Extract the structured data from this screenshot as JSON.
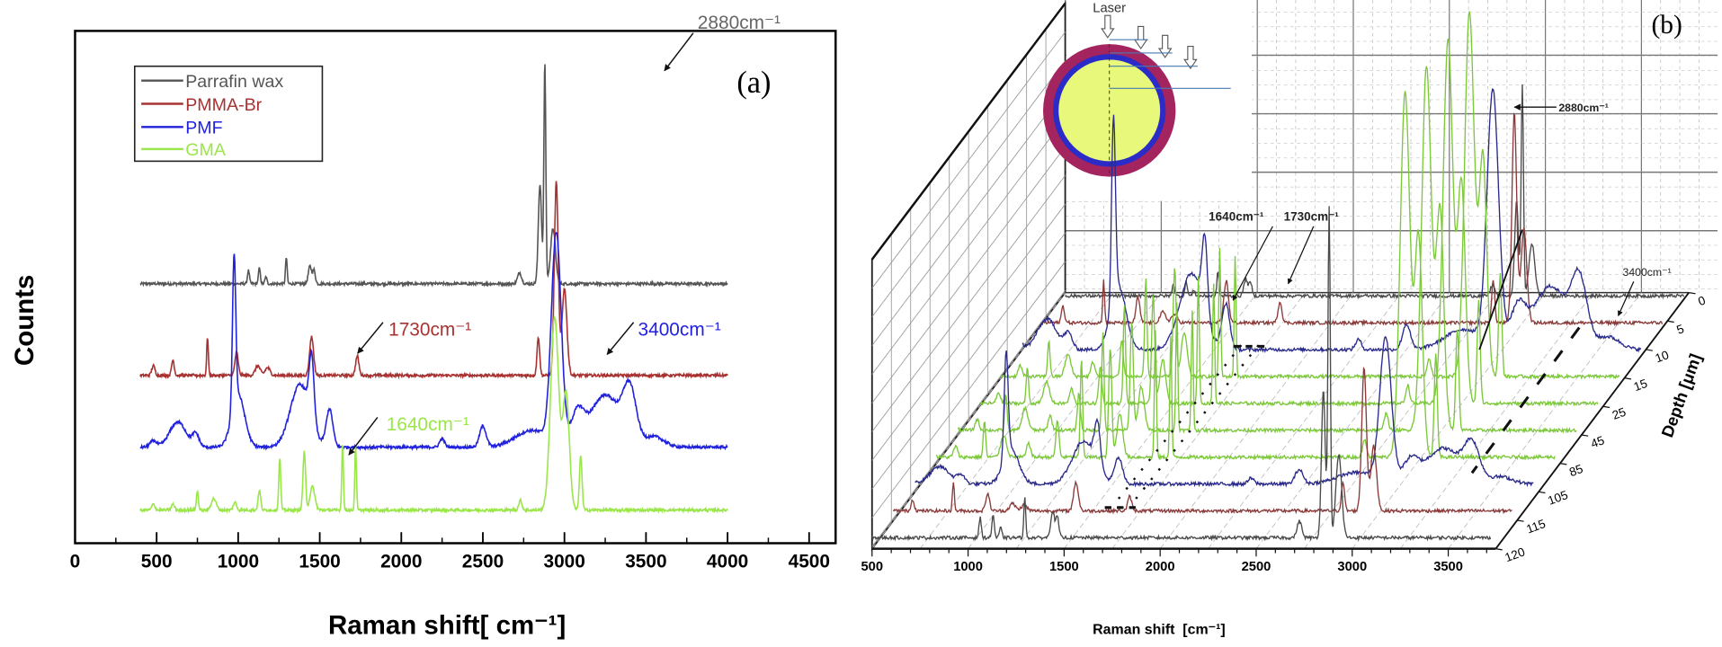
{
  "chart_data": [
    {
      "type": "line",
      "panel_label": "(a)",
      "xlabel": "Raman shift[ cm⁻¹]",
      "ylabel": "Counts",
      "xlim": [
        0,
        4500
      ],
      "x_ticks": [
        "0",
        "500",
        "1000",
        "1500",
        "2000",
        "2500",
        "3000",
        "3500",
        "4000",
        "4500"
      ],
      "grid": false,
      "legend_position": "top-left",
      "series": [
        {
          "name": "Parrafin wax",
          "color": "#555555",
          "range": [
            400,
            4000
          ],
          "peaks": [
            {
              "shift": 1063,
              "height": 0.06,
              "sigma": 6
            },
            {
              "shift": 1130,
              "height": 0.07,
              "sigma": 6
            },
            {
              "shift": 1170,
              "height": 0.03,
              "sigma": 6
            },
            {
              "shift": 1295,
              "height": 0.12,
              "sigma": 5
            },
            {
              "shift": 1440,
              "height": 0.08,
              "sigma": 10
            },
            {
              "shift": 1465,
              "height": 0.06,
              "sigma": 8
            },
            {
              "shift": 2725,
              "height": 0.05,
              "sigma": 12
            },
            {
              "shift": 2850,
              "height": 0.45,
              "sigma": 10
            },
            {
              "shift": 2880,
              "height": 1.0,
              "sigma": 6
            },
            {
              "shift": 2930,
              "height": 0.25,
              "sigma": 15
            }
          ]
        },
        {
          "name": "PMMA-Br",
          "color": "#a83232",
          "range": [
            400,
            4000
          ],
          "peaks": [
            {
              "shift": 480,
              "height": 0.05,
              "sigma": 10
            },
            {
              "shift": 600,
              "height": 0.08,
              "sigma": 8
            },
            {
              "shift": 812,
              "height": 0.2,
              "sigma": 5
            },
            {
              "shift": 990,
              "height": 0.12,
              "sigma": 10
            },
            {
              "shift": 1120,
              "height": 0.05,
              "sigma": 15
            },
            {
              "shift": 1180,
              "height": 0.04,
              "sigma": 15
            },
            {
              "shift": 1450,
              "height": 0.2,
              "sigma": 12
            },
            {
              "shift": 1730,
              "height": 0.1,
              "sigma": 10
            },
            {
              "shift": 2840,
              "height": 0.2,
              "sigma": 8
            },
            {
              "shift": 2950,
              "height": 1.0,
              "sigma": 12
            },
            {
              "shift": 3000,
              "height": 0.45,
              "sigma": 15
            }
          ]
        },
        {
          "name": "PMF",
          "color": "#2222dd",
          "range": [
            400,
            4000
          ],
          "peaks": [
            {
              "shift": 480,
              "height": 0.03,
              "sigma": 20
            },
            {
              "shift": 630,
              "height": 0.12,
              "sigma": 50
            },
            {
              "shift": 740,
              "height": 0.06,
              "sigma": 20
            },
            {
              "shift": 975,
              "height": 0.72,
              "sigma": 10
            },
            {
              "shift": 1000,
              "height": 0.25,
              "sigma": 40
            },
            {
              "shift": 1380,
              "height": 0.3,
              "sigma": 60
            },
            {
              "shift": 1450,
              "height": 0.3,
              "sigma": 15
            },
            {
              "shift": 1560,
              "height": 0.18,
              "sigma": 20
            },
            {
              "shift": 2250,
              "height": 0.04,
              "sigma": 15
            },
            {
              "shift": 2500,
              "height": 0.1,
              "sigma": 20
            },
            {
              "shift": 2800,
              "height": 0.08,
              "sigma": 100
            },
            {
              "shift": 2950,
              "height": 1.0,
              "sigma": 30
            },
            {
              "shift": 3080,
              "height": 0.15,
              "sigma": 40
            },
            {
              "shift": 3250,
              "height": 0.25,
              "sigma": 90
            },
            {
              "shift": 3400,
              "height": 0.25,
              "sigma": 40
            },
            {
              "shift": 3550,
              "height": 0.05,
              "sigma": 60
            }
          ]
        },
        {
          "name": "GMA",
          "color": "#9be64b",
          "range": [
            400,
            4000
          ],
          "peaks": [
            {
              "shift": 480,
              "height": 0.03,
              "sigma": 10
            },
            {
              "shift": 600,
              "height": 0.03,
              "sigma": 10
            },
            {
              "shift": 750,
              "height": 0.1,
              "sigma": 6
            },
            {
              "shift": 850,
              "height": 0.06,
              "sigma": 15
            },
            {
              "shift": 980,
              "height": 0.04,
              "sigma": 10
            },
            {
              "shift": 1130,
              "height": 0.1,
              "sigma": 8
            },
            {
              "shift": 1255,
              "height": 0.27,
              "sigma": 6
            },
            {
              "shift": 1405,
              "height": 0.3,
              "sigma": 8
            },
            {
              "shift": 1455,
              "height": 0.12,
              "sigma": 15
            },
            {
              "shift": 1640,
              "height": 0.35,
              "sigma": 5
            },
            {
              "shift": 1720,
              "height": 0.33,
              "sigma": 5
            },
            {
              "shift": 2730,
              "height": 0.05,
              "sigma": 10
            },
            {
              "shift": 2940,
              "height": 1.0,
              "sigma": 25
            },
            {
              "shift": 3010,
              "height": 0.6,
              "sigma": 20
            },
            {
              "shift": 3100,
              "height": 0.28,
              "sigma": 8
            }
          ]
        }
      ],
      "annotations": [
        {
          "text": "2880cm⁻¹",
          "shift": 2880,
          "color": "#666666"
        },
        {
          "text": "1730cm⁻¹",
          "shift": 1730,
          "color": "#a83232"
        },
        {
          "text": "3400cm⁻¹",
          "shift": 3400,
          "color": "#2222dd"
        },
        {
          "text": "1640cm⁻¹",
          "shift": 1640,
          "color": "#9be64b"
        }
      ]
    },
    {
      "type": "line",
      "subtype": "3d-waterfall",
      "panel_label": "(b)",
      "xlabel": "Raman shift  [cm⁻¹]",
      "zlabel": "Depth [μm]",
      "x_ticks": [
        "500",
        "1000",
        "1500",
        "2000",
        "2500",
        "3000",
        "3500"
      ],
      "depth_ticks": [
        "0",
        "5",
        "10",
        "15",
        "25",
        "45",
        "85",
        "105",
        "115",
        "120"
      ],
      "grid": true,
      "rows": [
        {
          "depth": 0,
          "material": "Parrafin wax",
          "color": "#4a4a4a"
        },
        {
          "depth": 5,
          "material": "PMMA-Br",
          "color": "#8b3a3a"
        },
        {
          "depth": 10,
          "material": "PMF",
          "color": "#2a2a8a"
        },
        {
          "depth": 15,
          "material": "GMA",
          "color": "#7cc83a"
        },
        {
          "depth": 25,
          "material": "GMA",
          "color": "#7cc83a"
        },
        {
          "depth": 45,
          "material": "GMA",
          "color": "#7cc83a"
        },
        {
          "depth": 85,
          "material": "GMA",
          "color": "#7cc83a"
        },
        {
          "depth": 105,
          "material": "PMF",
          "color": "#2a2a8a"
        },
        {
          "depth": 115,
          "material": "PMMA-Br",
          "color": "#8b3a3a"
        },
        {
          "depth": 120,
          "material": "Parrafin wax",
          "color": "#4a4a4a"
        }
      ],
      "annotations": {
        "a2880": "2880cm⁻¹",
        "a1640": "1640cm⁻¹",
        "a1730": "1730cm⁻¹",
        "a3400": "3400cm⁻¹"
      },
      "inset": {
        "label": "Laser",
        "colors": {
          "shell": "#a3245e",
          "ring": "#2b2bc8",
          "core": "#e8f87a"
        }
      }
    }
  ]
}
